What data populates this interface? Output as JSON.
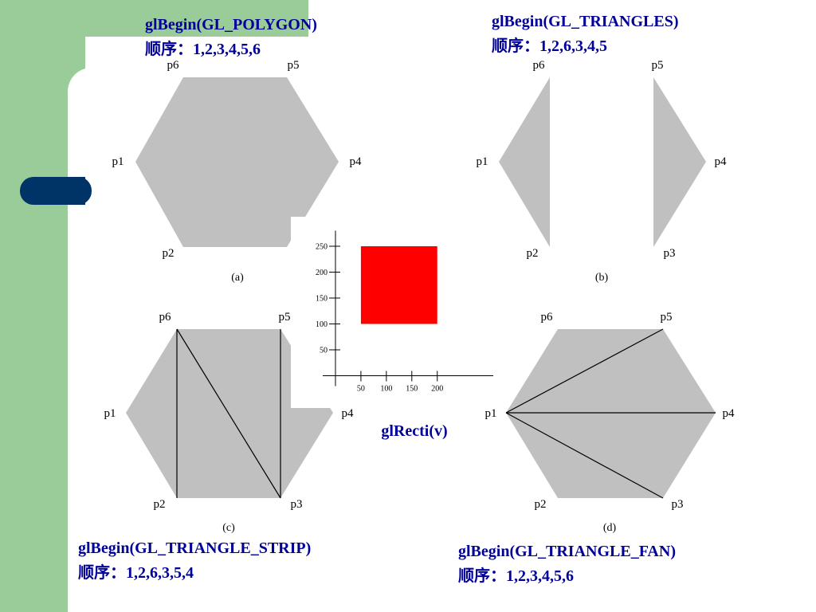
{
  "panels": [
    {
      "title": "glBegin(GL_POLYGON)",
      "order": "顺序：1,2,3,4,5,6",
      "caption": "(a)",
      "labels": [
        "p6",
        "p5",
        "p1",
        "p4",
        "p2"
      ]
    },
    {
      "title": "glBegin(GL_TRIANGLES)",
      "order": "顺序：1,2,6,3,4,5",
      "caption": "(b)",
      "labels": [
        "p6",
        "p5",
        "p1",
        "p4",
        "p2",
        "p3"
      ]
    },
    {
      "title": "glBegin(GL_TRIANGLE_STRIP)",
      "order": "顺序：1,2,6,3,5,4",
      "caption": "(c)",
      "labels": [
        "p6",
        "p5",
        "p1",
        "p4",
        "p2",
        "p3"
      ]
    },
    {
      "title": "glBegin(GL_TRIANGLE_FAN)",
      "order": "顺序：1,2,3,4,5,6",
      "caption": "(d)",
      "labels": [
        "p6",
        "p5",
        "p1",
        "p4",
        "p2",
        "p3"
      ]
    }
  ],
  "rect_plot": {
    "title": "glRecti(v)",
    "xlim": [
      -25,
      310
    ],
    "ylim": [
      -20,
      280
    ],
    "xticks": [
      50,
      100,
      150,
      200
    ],
    "yticks": [
      50,
      100,
      150,
      200,
      250
    ],
    "rect": {
      "x": [
        50,
        200
      ],
      "y": [
        100,
        250
      ]
    },
    "color": "#ff0000"
  }
}
